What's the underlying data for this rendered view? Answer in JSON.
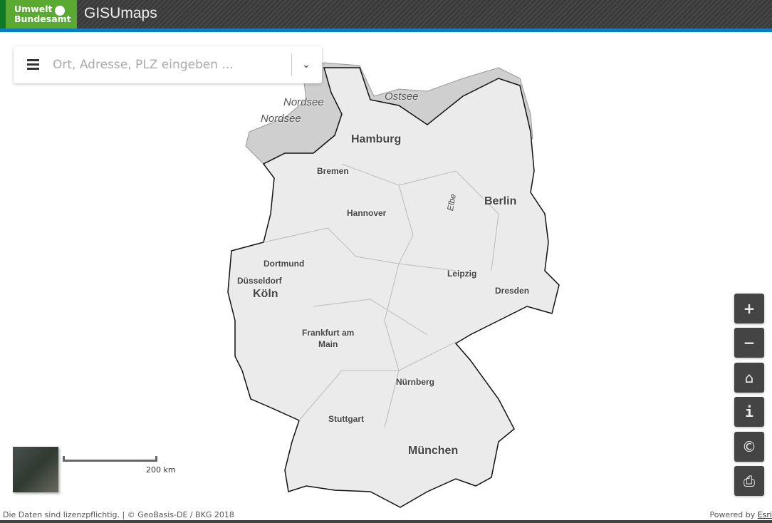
{
  "header": {
    "logo_line1": "Umwelt",
    "logo_line2": "Bundesamt",
    "app_title": "GISUmaps",
    "accent": "#0a7cc4",
    "logo_green": "#5aaa32"
  },
  "search": {
    "placeholder": "Ort, Adresse, PLZ eingeben ...",
    "value": "",
    "menu_icon": "hamburger-icon",
    "dropdown_icon": "chevron-down-icon"
  },
  "map": {
    "labels": {
      "nordsee1": "Nordsee",
      "nordsee2": "Nordsee",
      "ostsee": "Ostsee",
      "hamburg": "Hamburg",
      "bremen": "Bremen",
      "berlin": "Berlin",
      "elbe": "Elbe",
      "hannover": "Hannover",
      "dortmund": "Dortmund",
      "duesseldorf": "Düsseldorf",
      "koeln": "Köln",
      "leipzig": "Leipzig",
      "dresden": "Dresden",
      "frankfurt1": "Frankfurt am",
      "frankfurt2": "Main",
      "nuernberg": "Nürnberg",
      "stuttgart": "Stuttgart",
      "muenchen": "München"
    },
    "scale_label": "200 km"
  },
  "controls": {
    "zoom_in": "+",
    "zoom_out": "−",
    "info": "i",
    "copyright": "©"
  },
  "footer": {
    "attribution": "Die Daten sind lizenzpflichtig. | © GeoBasis-DE / BKG 2018",
    "powered_prefix": "Powered by ",
    "powered_link": "Esri"
  }
}
